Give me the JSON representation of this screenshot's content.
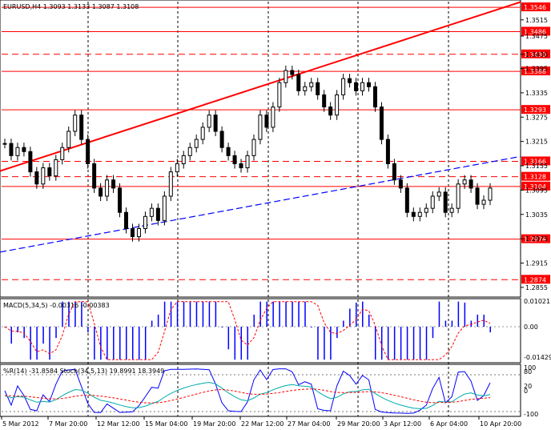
{
  "chart_data": [
    {
      "type": "candlestick",
      "title": "EURUSD,H4  1.3093 1.3133 1.3087 1.3108",
      "ylim": [
        1.2835,
        1.356
      ],
      "y_ticks": [
        "1.3515",
        "1.3475",
        "1.3430",
        "1.3395",
        "1.3335",
        "1.3275",
        "1.3215",
        "1.3155",
        "1.3095",
        "1.3035",
        "1.2975",
        "1.2915",
        "1.2855"
      ],
      "levels": [
        {
          "value": 1.3546,
          "label": "1.3546",
          "style": "solid"
        },
        {
          "value": 1.3486,
          "label": "1.3486",
          "style": "solid"
        },
        {
          "value": 1.343,
          "label": "1.3430",
          "style": "dashed"
        },
        {
          "value": 1.3388,
          "label": "1.3388",
          "style": "solid"
        },
        {
          "value": 1.3293,
          "label": "1.3293",
          "style": "solid"
        },
        {
          "value": 1.3166,
          "label": "1.3166",
          "style": "dashed"
        },
        {
          "value": 1.3128,
          "label": "1.3128",
          "style": "dashed"
        },
        {
          "value": 1.3104,
          "label": "1.3104",
          "style": "solid"
        },
        {
          "value": 1.2974,
          "label": "1.2974",
          "style": "solid"
        },
        {
          "value": 1.2874,
          "label": "1.2874",
          "style": "dashed"
        }
      ],
      "close_path": [
        1.321,
        1.318,
        1.32,
        1.319,
        1.314,
        1.311,
        1.315,
        1.313,
        1.317,
        1.32,
        1.324,
        1.328,
        1.322,
        1.316,
        1.31,
        1.308,
        1.312,
        1.31,
        1.304,
        1.3,
        1.298,
        1.3,
        1.303,
        1.305,
        1.302,
        1.308,
        1.314,
        1.316,
        1.318,
        1.32,
        1.322,
        1.325,
        1.328,
        1.324,
        1.32,
        1.318,
        1.316,
        1.315,
        1.318,
        1.322,
        1.328,
        1.325,
        1.33,
        1.336,
        1.339,
        1.338,
        1.334,
        1.335,
        1.336,
        1.333,
        1.33,
        1.328,
        1.333,
        1.337,
        1.336,
        1.334,
        1.336,
        1.335,
        1.33,
        1.322,
        1.316,
        1.312,
        1.31,
        1.304,
        1.303,
        1.304,
        1.305,
        1.308,
        1.309,
        1.304,
        1.305,
        1.311,
        1.312,
        1.31,
        1.306,
        1.307,
        1.31
      ]
    },
    {
      "type": "bar",
      "title": "MACD(5,34,5) -0.00316 -0.00383",
      "ylim": [
        -0.01429,
        0.01021
      ],
      "y_ticks": [
        "0.01021",
        "0.00",
        "-0.01429"
      ]
    },
    {
      "type": "line",
      "title": "%R(14) -31.8584  Stoch(34,5,13) 19.8991 18.3949",
      "ylim": [
        -100,
        100
      ],
      "y_ticks": [
        "100",
        "80",
        "20",
        "0",
        "-100"
      ]
    }
  ],
  "x_ticks": [
    "5 Mar 2012",
    "7 Mar 20:00",
    "12 Mar 12:00",
    "15 Mar 04:00",
    "19 Mar 20:00",
    "22 Mar 12:00",
    "27 Mar 04:00",
    "29 Mar 20:00",
    "3 Apr 12:00",
    "6 Apr 04:00",
    "10 Apr 20:00"
  ],
  "colors": {
    "level_line": "#ff0000",
    "trend_line": "#ff0000",
    "support_line": "#0000ff",
    "candle": "#000000",
    "macd_bars": "#0000ff",
    "macd_signal": "#ff0000",
    "wr_line": "#0000ff",
    "stoch_main": "#00aaaa",
    "stoch_signal": "#ff0000"
  }
}
